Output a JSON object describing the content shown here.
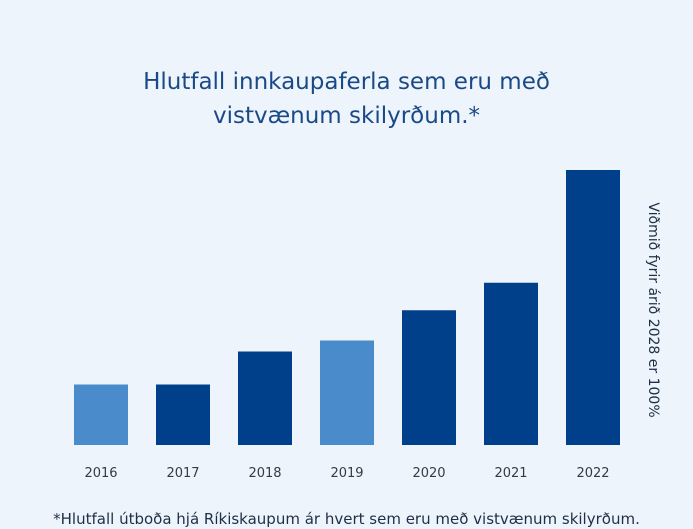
{
  "chart_data": {
    "type": "bar",
    "title_lines": [
      "Hlutfall innkaupaferla sem eru með",
      "vistvænum skilyrðum.*"
    ],
    "categories": [
      "2016",
      "2017",
      "2018",
      "2019",
      "2020",
      "2021",
      "2022"
    ],
    "values": [
      22,
      22,
      34,
      38,
      49,
      59,
      100
    ],
    "bar_colors": [
      "#4a8ccb",
      "#003f8a",
      "#003f8a",
      "#4a8ccb",
      "#003f8a",
      "#003f8a",
      "#003f8a"
    ],
    "ylim": [
      0,
      100
    ],
    "y_axis_note": "Viðmið fyrir árið 2028 er 100%",
    "footnote": "*Hlutfall útboða hjá Ríkiskaupum ár hvert sem eru með vistvænum skilyrðum.",
    "grid": false,
    "legend": "none"
  }
}
